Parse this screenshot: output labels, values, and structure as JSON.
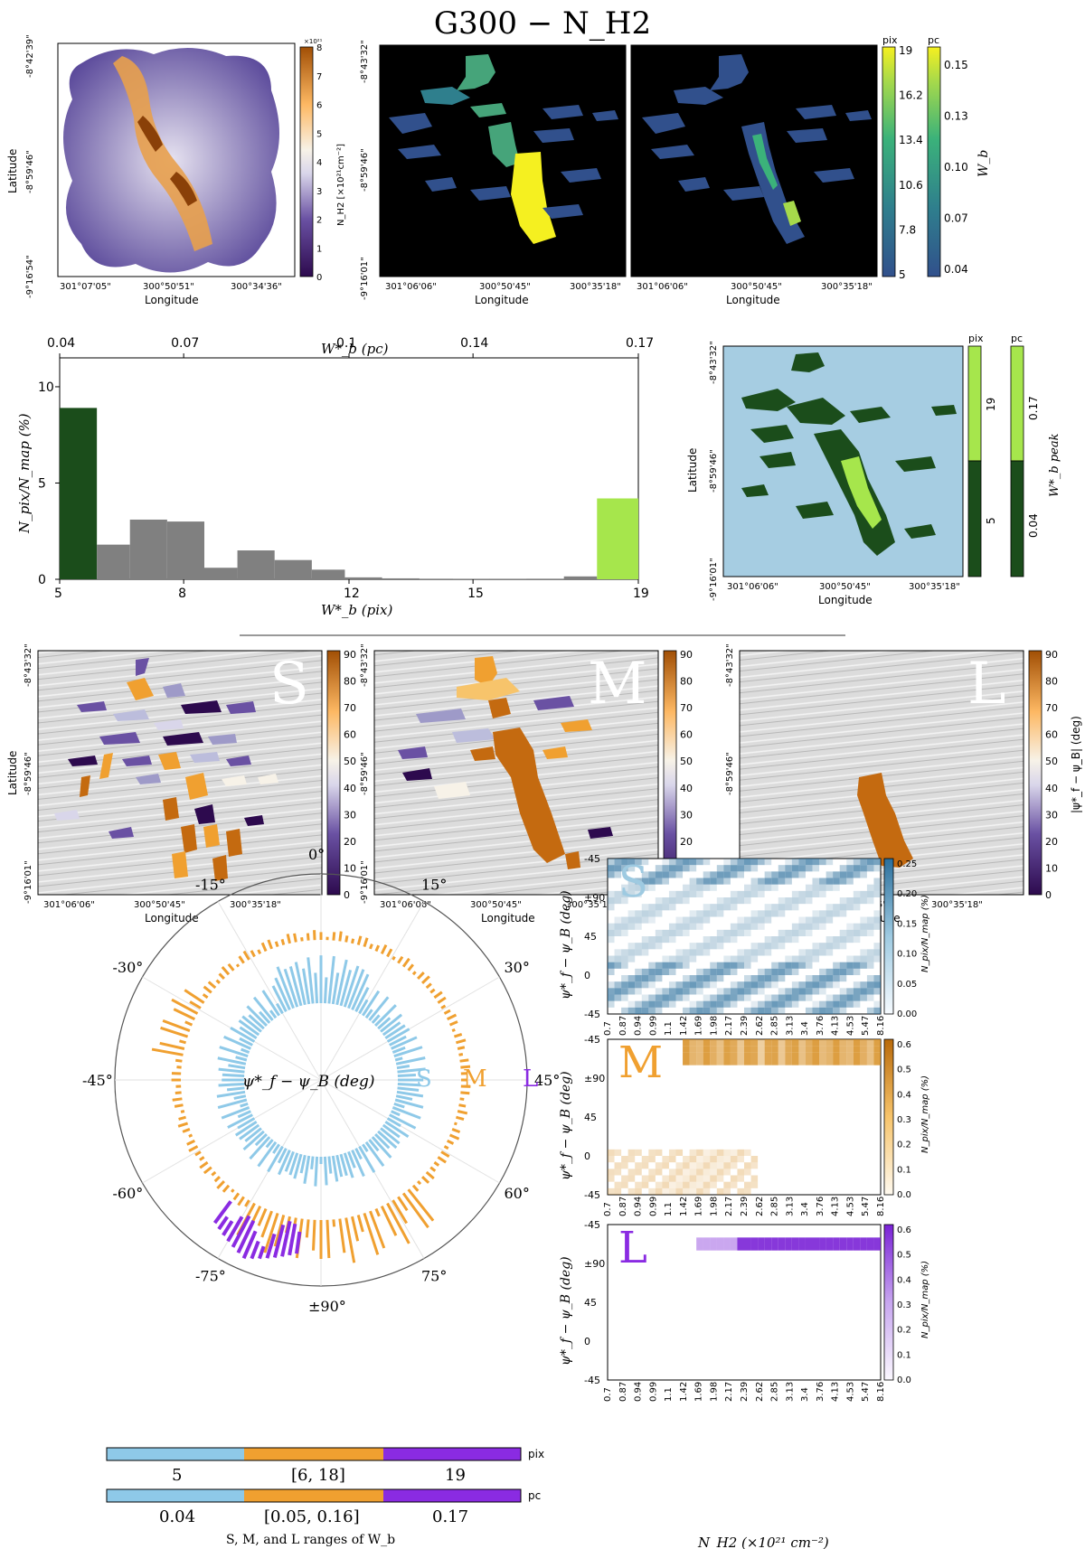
{
  "title": "G300 − N_H2",
  "common": {
    "lat_label": "Latitude",
    "lon_label": "Longitude"
  },
  "panel_nh2": {
    "lat_ticks": [
      "-8°42'39\"",
      "-8°59'46\"",
      "-9°16'54\""
    ],
    "lon_ticks": [
      "301°07'05\"",
      "300°50'51\"",
      "300°34'36\""
    ],
    "cbar_scale": "×10²¹",
    "cbar_label": "N_H2 [×10²¹cm⁻²]",
    "cbar_ticks": [
      "0",
      "1",
      "2",
      "3",
      "4",
      "5",
      "6",
      "7",
      "8"
    ],
    "colors": [
      "#2d0a4e",
      "#6a51a3",
      "#bcbddc",
      "#f7f7f7",
      "#fdb863",
      "#b35806"
    ]
  },
  "panel_wb": {
    "lat_ticks": [
      "-8°43'32\"",
      "-8°59'46\"",
      "-9°16'01\""
    ],
    "lon_ticks": [
      "301°06'06\"",
      "300°50'45\"",
      "300°35'18\""
    ],
    "cbar_pix_title": "pix",
    "cbar_pix_ticks": [
      "19",
      "16.2",
      "13.4",
      "10.6",
      "7.8",
      "5"
    ],
    "cbar_pc_title": "pc",
    "cbar_pc_ticks": [
      "0.15",
      "0.13",
      "0.10",
      "0.07",
      "0.04"
    ],
    "cbar_label": "W_b"
  },
  "panel_peak": {
    "lat_ticks": [
      "-8°43'32\"",
      "-8°59'46\"",
      "-9°16'01\""
    ],
    "lon_ticks": [
      "301°06'06\"",
      "300°50'45\"",
      "300°35'18\""
    ],
    "cbar_pix_title": "pix",
    "cbar_pix_ticks": [
      "19",
      "5"
    ],
    "cbar_pc_title": "pc",
    "cbar_pc_ticks": [
      "0.17",
      "0.04"
    ],
    "cbar_label": "W*_b peak",
    "colors": {
      "background": "#a6cde2",
      "dark": "#1b4d1b",
      "light": "#a6e64c"
    }
  },
  "panel_sml": {
    "labels": [
      "S",
      "M",
      "L"
    ],
    "lat_ticks": [
      "-8°43'32\"",
      "-8°59'46\"",
      "-9°16'01\""
    ],
    "lon_ticks": [
      "301°06'06\"",
      "300°50'45\"",
      "300°35'18\""
    ],
    "cbar_ticks": [
      "90",
      "80",
      "70",
      "60",
      "50",
      "40",
      "30",
      "20",
      "10",
      "0"
    ],
    "cbar_label": "|ψ*_f − ψ_B| (deg)"
  },
  "polar": {
    "angle_labels": [
      "0°",
      "15°",
      "30°",
      "45°",
      "60°",
      "75°",
      "±90°",
      "-75°",
      "-60°",
      "-45°",
      "-30°",
      "-15°"
    ],
    "center_label": "ψ*_f − ψ_B (deg)",
    "scale_labels": [
      "S",
      "M",
      "L"
    ],
    "colors": {
      "S": "#8ec9e8",
      "M": "#f0a030",
      "L": "#8a2be2"
    }
  },
  "range_bars": {
    "pix_unit": "pix",
    "pix_values": [
      "5",
      "[6, 18]",
      "19"
    ],
    "pc_unit": "pc",
    "pc_values": [
      "0.04",
      "[0.05, 0.16]",
      "0.17"
    ],
    "caption": "S, M, and L ranges of W_b"
  },
  "heatmaps": {
    "y_ticks": [
      "-45",
      "±90",
      "45",
      "0",
      "-45"
    ],
    "x_ticks": [
      "0.7",
      "0.87",
      "0.94",
      "0.99",
      "1.1",
      "1.42",
      "1.69",
      "1.98",
      "2.17",
      "2.39",
      "2.62",
      "2.85",
      "3.13",
      "3.4",
      "3.76",
      "4.13",
      "4.53",
      "5.47",
      "8.16"
    ],
    "ylabel": "ψ*_f − ψ_B (deg)",
    "xlabel": "N_H2 (×10²¹ cm⁻²)",
    "cbar_label": "N_pix/N_map (%)",
    "panels": [
      {
        "label": "S",
        "cbar_ticks": [
          "0.25",
          "0.20",
          "0.15",
          "0.10",
          "0.05",
          "0.00"
        ]
      },
      {
        "label": "M",
        "cbar_ticks": [
          "0.6",
          "0.5",
          "0.4",
          "0.3",
          "0.2",
          "0.1",
          "0.0"
        ]
      },
      {
        "label": "L",
        "cbar_ticks": [
          "0.6",
          "0.5",
          "0.4",
          "0.3",
          "0.2",
          "0.1",
          "0.0"
        ]
      }
    ]
  },
  "chart_data": {
    "type": "bar",
    "title": "",
    "xlabel": "W*_b (pix)",
    "ylabel": "N_pix/N_map (%)",
    "top_xlabel": "W*_b (pc)",
    "x_ticks": [
      "5",
      "8",
      "12",
      "15",
      "19"
    ],
    "top_x_ticks": [
      "0.04",
      "0.07",
      "0.1",
      "0.14",
      "0.17"
    ],
    "y_ticks": [
      "0",
      "5",
      "10"
    ],
    "ylim": [
      0,
      11.5
    ],
    "xlim": [
      5,
      19
    ],
    "bins": [
      {
        "x0": 5.0,
        "x1": 5.9,
        "value": 8.9,
        "color": "#1b4d1b"
      },
      {
        "x0": 5.9,
        "x1": 6.7,
        "value": 1.8,
        "color": "#808080"
      },
      {
        "x0": 6.7,
        "x1": 7.6,
        "value": 3.1,
        "color": "#808080"
      },
      {
        "x0": 7.6,
        "x1": 8.5,
        "value": 3.0,
        "color": "#808080"
      },
      {
        "x0": 8.5,
        "x1": 9.3,
        "value": 0.6,
        "color": "#808080"
      },
      {
        "x0": 9.3,
        "x1": 10.2,
        "value": 1.5,
        "color": "#808080"
      },
      {
        "x0": 10.2,
        "x1": 11.1,
        "value": 1.0,
        "color": "#808080"
      },
      {
        "x0": 11.1,
        "x1": 11.9,
        "value": 0.5,
        "color": "#808080"
      },
      {
        "x0": 11.9,
        "x1": 12.8,
        "value": 0.1,
        "color": "#808080"
      },
      {
        "x0": 12.8,
        "x1": 13.7,
        "value": 0.05,
        "color": "#808080"
      },
      {
        "x0": 13.7,
        "x1": 14.5,
        "value": 0.03,
        "color": "#808080"
      },
      {
        "x0": 14.5,
        "x1": 15.4,
        "value": 0.02,
        "color": "#808080"
      },
      {
        "x0": 15.4,
        "x1": 16.3,
        "value": 0.02,
        "color": "#808080"
      },
      {
        "x0": 16.3,
        "x1": 17.2,
        "value": 0.03,
        "color": "#808080"
      },
      {
        "x0": 17.2,
        "x1": 18.0,
        "value": 0.15,
        "color": "#808080"
      },
      {
        "x0": 18.0,
        "x1": 19.0,
        "value": 4.2,
        "color": "#a6e64c"
      }
    ]
  }
}
